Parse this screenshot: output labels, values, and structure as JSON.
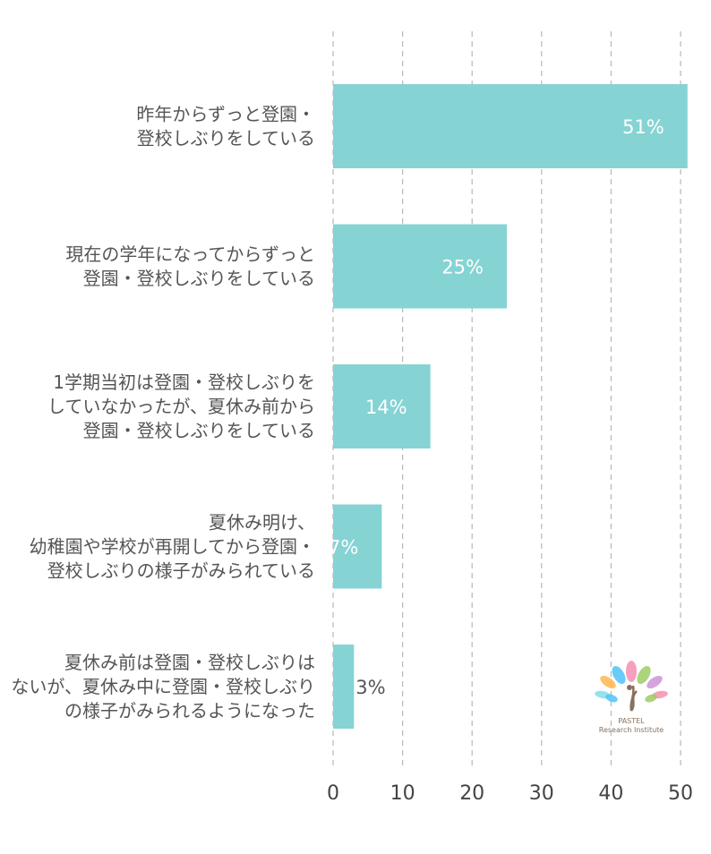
{
  "chart_data": {
    "type": "bar",
    "orientation": "horizontal",
    "categories": [
      [
        "昨年からずっと登園・",
        "登校しぶりをしている"
      ],
      [
        "現在の学年になってからずっと",
        "登園・登校しぶりをしている"
      ],
      [
        "1学期当初は登園・登校しぶりを",
        "していなかったが、夏休み前から",
        "登園・登校しぶりをしている"
      ],
      [
        "夏休み明け、",
        "幼稚園や学校が再開してから登園・",
        "登校しぶりの様子がみられている"
      ],
      [
        "夏休み前は登園・登校しぶりは",
        "ないが、夏休み中に登園・登校しぶり",
        "の様子がみられるようになった"
      ]
    ],
    "values": [
      51,
      25,
      14,
      7,
      3
    ],
    "data_labels": [
      "51%",
      "25%",
      "14%",
      "7%",
      "3%"
    ],
    "xlim": [
      0,
      50
    ],
    "x_ticks": [
      0,
      10,
      20,
      30,
      40,
      50
    ],
    "grid": true,
    "bar_color": "#86d3d4"
  },
  "logo": {
    "line1": "PASTEL",
    "line2": "Research Institute",
    "petal_colors": [
      "#f48fb1",
      "#4fc3f7",
      "#9ccc65",
      "#ffb74d",
      "#ce93d8",
      "#80deea"
    ]
  }
}
